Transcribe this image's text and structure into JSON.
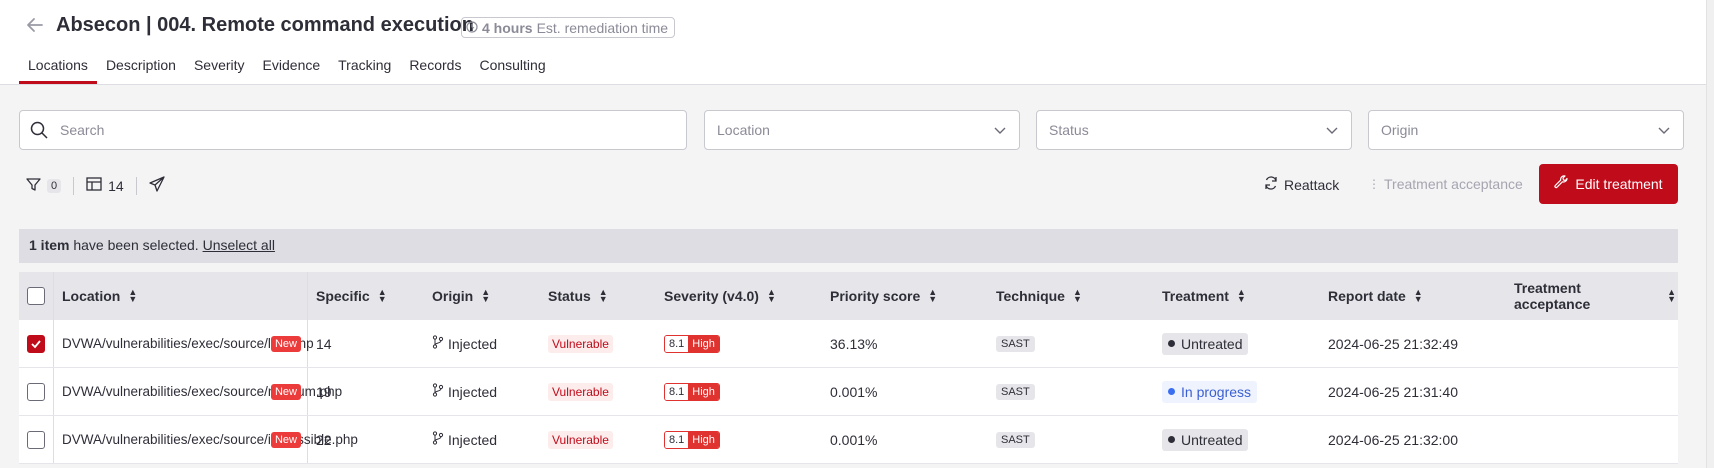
{
  "header": {
    "title": "Absecon | 004. Remote command execution",
    "remediation_hours": "4 hours",
    "remediation_text": "Est. remediation time"
  },
  "tabs": [
    {
      "label": "Locations"
    },
    {
      "label": "Description"
    },
    {
      "label": "Severity"
    },
    {
      "label": "Evidence"
    },
    {
      "label": "Tracking"
    },
    {
      "label": "Records"
    },
    {
      "label": "Consulting"
    }
  ],
  "filters": {
    "search_placeholder": "Search",
    "location": "Location",
    "status": "Status",
    "origin": "Origin"
  },
  "toolbar": {
    "filter_count": "0",
    "columns_count": "14",
    "reattack": "Reattack",
    "treatment_acceptance": "Treatment acceptance",
    "edit_treatment": "Edit treatment"
  },
  "selection": {
    "count": "1 item",
    "text": "have been selected.",
    "unselect": "Unselect all"
  },
  "table": {
    "headers": [
      "Location",
      "Specific",
      "Origin",
      "Status",
      "Severity (v4.0)",
      "Priority score",
      "Technique",
      "Treatment",
      "Report date",
      "Treatment acceptance"
    ],
    "rows": [
      {
        "checked": true,
        "location": "DVWA/vulnerabilities/exec/source/low.php",
        "tag": "New",
        "specific": "14",
        "origin": "Injected",
        "status": "Vulnerable",
        "sev_score": "8.1",
        "sev_label": "High",
        "priority": "36.13%",
        "technique": "SAST",
        "treatment": "Untreated",
        "date": "2024-06-25 21:32:49"
      },
      {
        "checked": false,
        "location": "DVWA/vulnerabilities/exec/source/medium.php",
        "tag": "New",
        "specific": "19",
        "origin": "Injected",
        "status": "Vulnerable",
        "sev_score": "8.1",
        "sev_label": "High",
        "priority": "0.001%",
        "technique": "SAST",
        "treatment": "In progress",
        "date": "2024-06-25 21:31:40"
      },
      {
        "checked": false,
        "location": "DVWA/vulnerabilities/exec/source/impossible.php",
        "tag": "New",
        "specific": "22",
        "origin": "Injected",
        "status": "Vulnerable",
        "sev_score": "8.1",
        "sev_label": "High",
        "priority": "0.001%",
        "technique": "SAST",
        "treatment": "Untreated",
        "date": "2024-06-25 21:32:00"
      }
    ]
  },
  "colors": {
    "brand": "#bf0b1a",
    "progress": "#3b6ef0"
  }
}
